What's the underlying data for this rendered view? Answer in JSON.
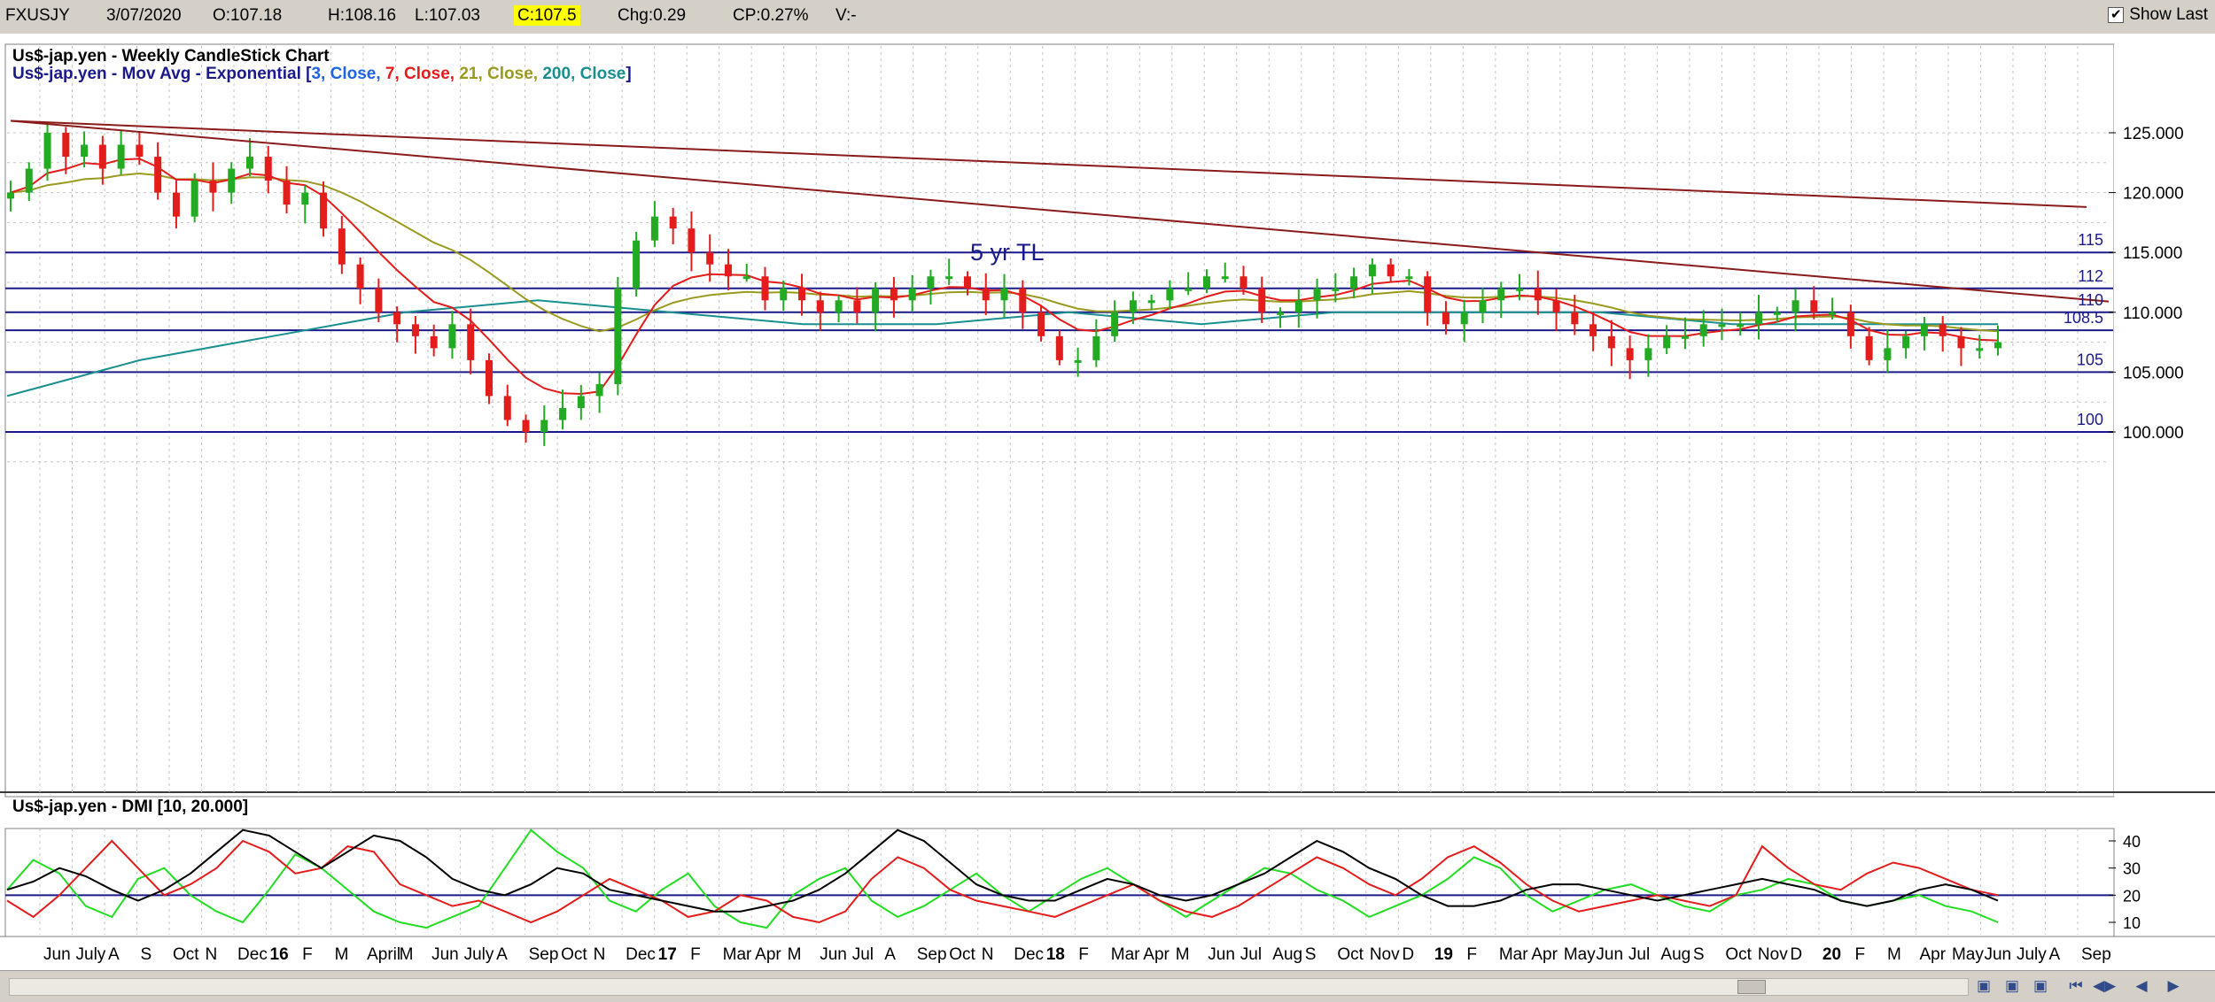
{
  "header": {
    "symbol": "FXUSJY",
    "date": "3/07/2020",
    "open": "O:107.18",
    "high": "H:108.16",
    "low": "L:107.03",
    "close": "C:107.5",
    "change": "Chg:0.29",
    "change_pct": "CP:0.27%",
    "volume": "V:-",
    "show_last_label": "Show Last",
    "show_last_checked": true
  },
  "price_panel": {
    "title": "Us$-jap.yen - Weekly CandleStick Chart",
    "ma_label_prefix": "Us$-jap.yen - Mov Avg - Exponential [",
    "ma_params": [
      {
        "text": "3, Close,",
        "color": "#1e64e6"
      },
      {
        "text": "7, Close,",
        "color": "#e31c1c"
      },
      {
        "text": "21, Close,",
        "color": "#9a9a20"
      },
      {
        "text": "200, Close",
        "color": "#1a8f8f"
      }
    ],
    "ma_label_suffix": "]",
    "annotation": "5 yr TL"
  },
  "dmi_panel": {
    "title": "Us$-jap.yen - DMI [10, 20.000]"
  },
  "chart_data": [
    {
      "type": "candlestick",
      "title": "Us$-jap.yen - Weekly CandleStick Chart",
      "ylim": [
        95,
        127
      ],
      "y_ticks": [
        "100.000",
        "105.000",
        "110.000",
        "115.000",
        "120.000",
        "125.000"
      ],
      "horizontal_levels": [
        {
          "value": 115,
          "label": "115"
        },
        {
          "value": 112,
          "label": "112"
        },
        {
          "value": 110,
          "label": "110"
        },
        {
          "value": 108.5,
          "label": "108.5"
        },
        {
          "value": 105,
          "label": "105"
        },
        {
          "value": 100,
          "label": "100"
        }
      ],
      "x_labels": [
        "Jun",
        "July",
        "A",
        "S",
        "Oct",
        "N",
        "Dec",
        "16",
        "F",
        "M",
        "April",
        "M",
        "Jun",
        "July",
        "A",
        "Sep",
        "Oct",
        "N",
        "Dec",
        "17",
        "F",
        "Mar",
        "Apr",
        "M",
        "Jun",
        "Jul",
        "A",
        "Sep",
        "Oct",
        "N",
        "Dec",
        "18",
        "F",
        "Mar",
        "Apr",
        "M",
        "Jun",
        "Jul",
        "Aug",
        "S",
        "Oct",
        "Nov",
        "D",
        "19",
        "F",
        "Mar",
        "Apr",
        "May",
        "Jun",
        "Jul",
        "Aug",
        "S",
        "Oct",
        "Nov",
        "D",
        "20",
        "F",
        "M",
        "Apr",
        "May",
        "Jun",
        "July",
        "A",
        "Sep"
      ],
      "weekly_close_approx": [
        120,
        122,
        125,
        123,
        124,
        122,
        124,
        123,
        120,
        118,
        121,
        120,
        122,
        123,
        121,
        119,
        120,
        117,
        114,
        112,
        110,
        109,
        108,
        107,
        109,
        106,
        103,
        101,
        100,
        101,
        102,
        103,
        104,
        112,
        116,
        118,
        117,
        115,
        114,
        113,
        113,
        111,
        112,
        111,
        110,
        111,
        110,
        112,
        111,
        112,
        113,
        113,
        112,
        111,
        112,
        110,
        108,
        106,
        106,
        108,
        110,
        111,
        111,
        112,
        112,
        113,
        113,
        112,
        110,
        110,
        111,
        112,
        112,
        113,
        114,
        113,
        113,
        110,
        109,
        110,
        111,
        112,
        112,
        111,
        110,
        109,
        108,
        107,
        106,
        107,
        108,
        108,
        109,
        109,
        109,
        110,
        110,
        111,
        110,
        110,
        108,
        106,
        107,
        108,
        109,
        108,
        107,
        107,
        107.5
      ],
      "series": [
        {
          "name": "3, Close",
          "color": "#1e64e6"
        },
        {
          "name": "7, Close",
          "color": "#e31c1c"
        },
        {
          "name": "21, Close",
          "color": "#9a9a20"
        },
        {
          "name": "200, Close",
          "color": "#1a8f8f",
          "values_approx": [
            103,
            106,
            108,
            110,
            111,
            110,
            109,
            109,
            110,
            109,
            110,
            110,
            110,
            109,
            109,
            109
          ]
        }
      ],
      "trendlines": [
        {
          "from_value": 126,
          "to_value": 111,
          "label": "5 yr TL"
        },
        {
          "from_value": 126,
          "to_value": 119
        }
      ]
    },
    {
      "type": "line",
      "title": "Us$-jap.yen - DMI [10, 20.000]",
      "ylim": [
        5,
        47
      ],
      "y_ticks": [
        "10",
        "20",
        "30",
        "40"
      ],
      "threshold": 20,
      "series": [
        {
          "name": "+DI",
          "color": "#22dd22",
          "values": [
            22,
            33,
            28,
            16,
            12,
            26,
            30,
            20,
            14,
            10,
            22,
            35,
            30,
            22,
            14,
            10,
            8,
            12,
            16,
            30,
            44,
            36,
            30,
            18,
            14,
            22,
            28,
            16,
            10,
            8,
            20,
            26,
            30,
            18,
            12,
            16,
            22,
            28,
            20,
            14,
            20,
            26,
            30,
            24,
            18,
            12,
            18,
            24,
            30,
            28,
            22,
            18,
            12,
            16,
            20,
            26,
            34,
            30,
            20,
            14,
            18,
            22,
            24,
            20,
            16,
            14,
            20,
            22,
            26,
            24,
            18,
            16,
            18,
            20,
            16,
            14,
            10
          ]
        },
        {
          "name": "-DI",
          "color": "#e31c1c",
          "values": [
            18,
            12,
            20,
            30,
            40,
            30,
            20,
            24,
            30,
            40,
            36,
            28,
            30,
            38,
            36,
            24,
            20,
            16,
            18,
            14,
            10,
            14,
            20,
            26,
            22,
            18,
            12,
            14,
            20,
            18,
            12,
            10,
            14,
            26,
            34,
            30,
            22,
            18,
            16,
            14,
            12,
            16,
            20,
            24,
            18,
            14,
            12,
            16,
            22,
            28,
            34,
            30,
            24,
            20,
            26,
            34,
            38,
            32,
            24,
            18,
            14,
            16,
            18,
            20,
            18,
            16,
            20,
            38,
            30,
            24,
            22,
            28,
            32,
            30,
            26,
            22,
            20
          ]
        },
        {
          "name": "ADX",
          "color": "#000000",
          "values": [
            22,
            25,
            30,
            27,
            22,
            18,
            22,
            28,
            36,
            44,
            42,
            36,
            30,
            36,
            42,
            40,
            34,
            26,
            22,
            20,
            24,
            30,
            28,
            22,
            20,
            18,
            16,
            14,
            14,
            16,
            18,
            22,
            28,
            36,
            44,
            40,
            32,
            24,
            20,
            18,
            18,
            22,
            26,
            24,
            20,
            18,
            20,
            24,
            28,
            34,
            40,
            36,
            30,
            26,
            20,
            16,
            16,
            18,
            22,
            24,
            24,
            22,
            20,
            18,
            20,
            22,
            24,
            26,
            24,
            22,
            18,
            16,
            18,
            22,
            24,
            22,
            18
          ]
        }
      ]
    }
  ]
}
